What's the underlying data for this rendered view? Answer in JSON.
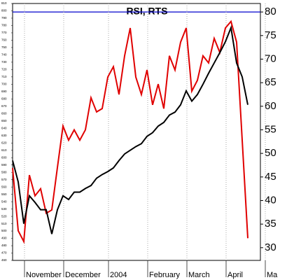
{
  "chart_data": {
    "type": "line",
    "title": "RSI, RTS",
    "categories": [
      null,
      null,
      "November",
      null,
      null,
      null,
      null,
      null,
      null,
      "December",
      null,
      null,
      null,
      null,
      null,
      null,
      null,
      "2004",
      null,
      null,
      null,
      null,
      null,
      null,
      "February",
      null,
      null,
      null,
      null,
      null,
      null,
      "March",
      null,
      null,
      null,
      null,
      null,
      null,
      "April",
      null,
      null,
      null,
      null,
      null,
      null,
      "Ma"
    ],
    "series": [
      {
        "name": "RSI",
        "color": "#e00000",
        "axis": "y2",
        "values": [
          46.9,
          33.6,
          31.3,
          45.4,
          41,
          42.5,
          37.3,
          38,
          47,
          55.8,
          52.8,
          55,
          52.8,
          55,
          61.8,
          58.8,
          59.5,
          66.2,
          68.4,
          62.5,
          70.7,
          76.6,
          66.2,
          62.5,
          67.7,
          60.3,
          64.7,
          59.5,
          70.7,
          67.7,
          73.6,
          76.6,
          63.2,
          65.5,
          70.7,
          69.2,
          74.4,
          71.4,
          76.6,
          78,
          73.6,
          52.8,
          32,
          null,
          null,
          null
        ]
      },
      {
        "name": "RTS",
        "color": "#000000",
        "values": [
          596,
          567,
          510,
          548,
          539,
          529,
          529,
          496,
          529,
          548,
          543,
          553,
          553,
          558,
          562,
          572,
          577,
          581,
          586,
          596,
          605,
          610,
          615,
          619,
          629,
          634,
          643,
          648,
          658,
          662,
          672,
          691,
          677,
          686,
          700,
          715,
          729,
          743,
          758,
          777,
          729,
          710,
          672,
          null,
          null,
          null
        ]
      }
    ],
    "ylim": [
      460,
      810
    ],
    "yticks": [
      460,
      470,
      480,
      490,
      500,
      510,
      520,
      530,
      540,
      550,
      560,
      570,
      580,
      590,
      600,
      610,
      620,
      630,
      640,
      650,
      660,
      670,
      680,
      690,
      700,
      710,
      720,
      730,
      740,
      750,
      760,
      770,
      780,
      790,
      800,
      810
    ],
    "y2lim": [
      27.3,
      81.8
    ],
    "y2ticks": [
      30,
      35,
      40,
      45,
      50,
      55,
      60,
      65,
      70,
      75,
      80
    ],
    "threshold": 80,
    "threshold_color": "#0000cc"
  }
}
